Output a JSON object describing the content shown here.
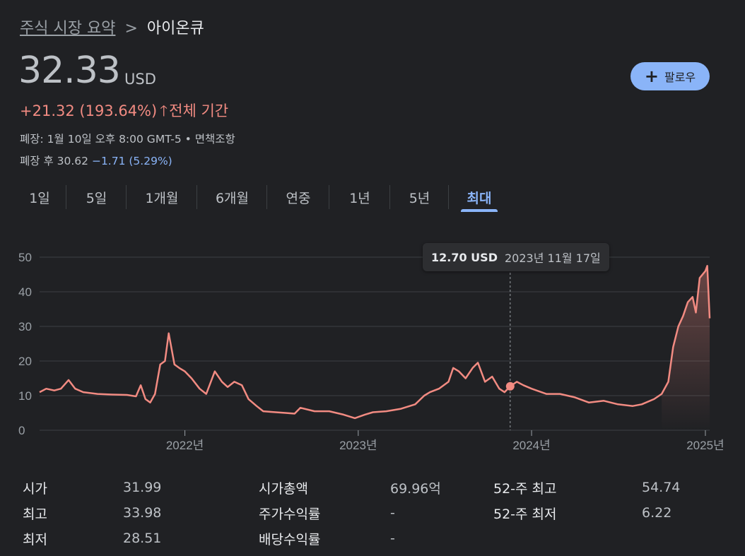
{
  "breadcrumb": {
    "parent": "주식 시장 요약",
    "separator": ">",
    "current": "아이온큐"
  },
  "quote": {
    "price": "32.33",
    "currency": "USD",
    "change": "+21.32 (193.64%)",
    "period": "전체 기간",
    "close_info": "폐장: 1월 10일 오후 8:00 GMT-5 • 면책조항",
    "after_label": "폐장 후 30.62",
    "after_change": "−1.71 (5.29%)"
  },
  "follow_button": {
    "icon": "plus-icon",
    "label": "팔로우"
  },
  "tabs": [
    {
      "label": "1일",
      "active": false
    },
    {
      "label": "5일",
      "active": false
    },
    {
      "label": "1개월",
      "active": false
    },
    {
      "label": "6개월",
      "active": false
    },
    {
      "label": "연중",
      "active": false
    },
    {
      "label": "1년",
      "active": false
    },
    {
      "label": "5년",
      "active": false
    },
    {
      "label": "최대",
      "active": true
    }
  ],
  "tooltip": {
    "price": "12.70 USD",
    "date": "2023년 11월 17일"
  },
  "colors": {
    "line": "#f28b82",
    "accent": "#8ab4f8",
    "background": "#202124",
    "grid": "#3c4043"
  },
  "chart_data": {
    "type": "line",
    "ylim": [
      0,
      50
    ],
    "yticks": [
      "0",
      "10",
      "20",
      "30",
      "40",
      "50"
    ],
    "xticks": [
      "2022년",
      "2023년",
      "2024년",
      "2025년"
    ],
    "x_start": "2021-03-01",
    "x_end": "2025-01-10",
    "highlight": {
      "x": "2023-11-17",
      "y": 12.7
    },
    "series": [
      {
        "x": "2021-03-01",
        "y": 11
      },
      {
        "x": "2021-03-15",
        "y": 12
      },
      {
        "x": "2021-04-01",
        "y": 11.5
      },
      {
        "x": "2021-04-15",
        "y": 12
      },
      {
        "x": "2021-05-01",
        "y": 14.5
      },
      {
        "x": "2021-05-15",
        "y": 12
      },
      {
        "x": "2021-06-01",
        "y": 11
      },
      {
        "x": "2021-07-01",
        "y": 10.5
      },
      {
        "x": "2021-08-01",
        "y": 10.3
      },
      {
        "x": "2021-09-01",
        "y": 10.2
      },
      {
        "x": "2021-09-20",
        "y": 9.8
      },
      {
        "x": "2021-09-30",
        "y": 13
      },
      {
        "x": "2021-10-10",
        "y": 9
      },
      {
        "x": "2021-10-20",
        "y": 8
      },
      {
        "x": "2021-10-30",
        "y": 10.5
      },
      {
        "x": "2021-11-10",
        "y": 19
      },
      {
        "x": "2021-11-20",
        "y": 20
      },
      {
        "x": "2021-11-28",
        "y": 28
      },
      {
        "x": "2021-12-10",
        "y": 19
      },
      {
        "x": "2021-12-20",
        "y": 18
      },
      {
        "x": "2022-01-01",
        "y": 17
      },
      {
        "x": "2022-01-15",
        "y": 15
      },
      {
        "x": "2022-02-01",
        "y": 12
      },
      {
        "x": "2022-02-15",
        "y": 10.5
      },
      {
        "x": "2022-03-05",
        "y": 17
      },
      {
        "x": "2022-03-20",
        "y": 14
      },
      {
        "x": "2022-04-01",
        "y": 12.5
      },
      {
        "x": "2022-04-15",
        "y": 14
      },
      {
        "x": "2022-05-01",
        "y": 13
      },
      {
        "x": "2022-05-15",
        "y": 9
      },
      {
        "x": "2022-06-01",
        "y": 7
      },
      {
        "x": "2022-06-15",
        "y": 5.5
      },
      {
        "x": "2022-07-01",
        "y": 5.3
      },
      {
        "x": "2022-08-01",
        "y": 5
      },
      {
        "x": "2022-08-20",
        "y": 4.8
      },
      {
        "x": "2022-09-01",
        "y": 6.5
      },
      {
        "x": "2022-10-01",
        "y": 5.5
      },
      {
        "x": "2022-11-01",
        "y": 5.5
      },
      {
        "x": "2022-12-01",
        "y": 4.5
      },
      {
        "x": "2022-12-25",
        "y": 3.5
      },
      {
        "x": "2023-01-15",
        "y": 4.5
      },
      {
        "x": "2023-02-01",
        "y": 5.2
      },
      {
        "x": "2023-03-01",
        "y": 5.5
      },
      {
        "x": "2023-04-01",
        "y": 6.2
      },
      {
        "x": "2023-05-01",
        "y": 7.5
      },
      {
        "x": "2023-05-20",
        "y": 10
      },
      {
        "x": "2023-06-01",
        "y": 11
      },
      {
        "x": "2023-06-20",
        "y": 12
      },
      {
        "x": "2023-07-10",
        "y": 14
      },
      {
        "x": "2023-07-20",
        "y": 18
      },
      {
        "x": "2023-08-01",
        "y": 17
      },
      {
        "x": "2023-08-15",
        "y": 15
      },
      {
        "x": "2023-08-30",
        "y": 18
      },
      {
        "x": "2023-09-10",
        "y": 19.5
      },
      {
        "x": "2023-09-25",
        "y": 14
      },
      {
        "x": "2023-10-10",
        "y": 15.5
      },
      {
        "x": "2023-10-25",
        "y": 12
      },
      {
        "x": "2023-11-05",
        "y": 11
      },
      {
        "x": "2023-11-17",
        "y": 12.7
      },
      {
        "x": "2023-12-01",
        "y": 14
      },
      {
        "x": "2023-12-15",
        "y": 13
      },
      {
        "x": "2024-01-01",
        "y": 12
      },
      {
        "x": "2024-02-01",
        "y": 10.5
      },
      {
        "x": "2024-03-01",
        "y": 10.5
      },
      {
        "x": "2024-04-01",
        "y": 9.5
      },
      {
        "x": "2024-05-01",
        "y": 8
      },
      {
        "x": "2024-06-01",
        "y": 8.5
      },
      {
        "x": "2024-07-01",
        "y": 7.5
      },
      {
        "x": "2024-08-01",
        "y": 7
      },
      {
        "x": "2024-08-20",
        "y": 7.5
      },
      {
        "x": "2024-09-15",
        "y": 9
      },
      {
        "x": "2024-10-01",
        "y": 10.5
      },
      {
        "x": "2024-10-15",
        "y": 14
      },
      {
        "x": "2024-10-25",
        "y": 24
      },
      {
        "x": "2024-11-05",
        "y": 30
      },
      {
        "x": "2024-11-15",
        "y": 33
      },
      {
        "x": "2024-11-25",
        "y": 37
      },
      {
        "x": "2024-12-05",
        "y": 38.5
      },
      {
        "x": "2024-12-12",
        "y": 34
      },
      {
        "x": "2024-12-20",
        "y": 44
      },
      {
        "x": "2025-01-01",
        "y": 46
      },
      {
        "x": "2025-01-05",
        "y": 47.5
      },
      {
        "x": "2025-01-10",
        "y": 32.33
      }
    ]
  },
  "stats": [
    {
      "label": "시가",
      "value": "31.99"
    },
    {
      "label": "최고",
      "value": "33.98"
    },
    {
      "label": "최저",
      "value": "28.51"
    },
    {
      "label": "시가총액",
      "value": "69.96억"
    },
    {
      "label": "주가수익률",
      "value": "-"
    },
    {
      "label": "배당수익률",
      "value": "-"
    },
    {
      "label": "52-주 최고",
      "value": "54.74"
    },
    {
      "label": "52-주 최저",
      "value": "6.22"
    }
  ]
}
